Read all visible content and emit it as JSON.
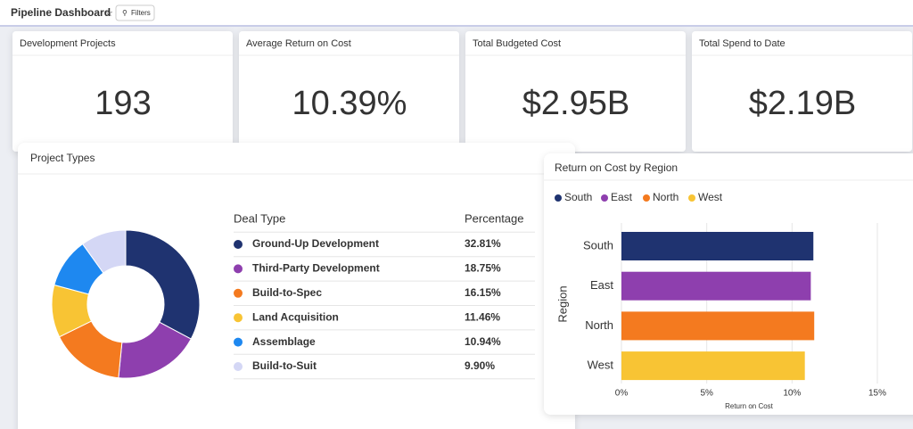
{
  "header": {
    "title": "Pipeline Dashboard",
    "filters_button": "Filters"
  },
  "kpis": [
    {
      "title": "Development Projects",
      "value": "193"
    },
    {
      "title": "Average Return on Cost",
      "value": "10.39%"
    },
    {
      "title": "Total Budgeted Cost",
      "value": "$2.95B"
    },
    {
      "title": "Total Spend to Date",
      "value": "$2.19B"
    }
  ],
  "project_types": {
    "type": "pie",
    "title": "Project Types",
    "column_headers": [
      "Deal Type",
      "Percentage"
    ],
    "categories": [
      "Ground-Up Development",
      "Third-Party Development",
      "Build-to-Spec",
      "Land Acquisition",
      "Assemblage",
      "Build-to-Suit"
    ],
    "values": [
      32.81,
      18.75,
      16.15,
      11.46,
      10.94,
      9.9
    ],
    "value_labels": [
      "32.81%",
      "18.75%",
      "16.15%",
      "11.46%",
      "10.94%",
      "9.90%"
    ],
    "colors": [
      "#1f3370",
      "#8e3fae",
      "#f47a1f",
      "#f8c434",
      "#1e88f0",
      "#d4d7f5"
    ]
  },
  "region_chart": {
    "type": "bar",
    "orientation": "horizontal",
    "title": "Return on Cost by Region",
    "x_label": "Return on Cost",
    "y_label": "Region",
    "categories": [
      "South",
      "East",
      "North",
      "West"
    ],
    "values": [
      11.25,
      11.1,
      11.3,
      10.75
    ],
    "colors": [
      "#1f3370",
      "#8e3fae",
      "#f47a1f",
      "#f8c434"
    ],
    "xlim": [
      0,
      15
    ],
    "xticks": [
      {
        "value": 0,
        "label": "0%"
      },
      {
        "value": 5,
        "label": "5%"
      },
      {
        "value": 10,
        "label": "10%"
      },
      {
        "value": 15,
        "label": "15%"
      }
    ],
    "grid": true,
    "legend": "top"
  }
}
